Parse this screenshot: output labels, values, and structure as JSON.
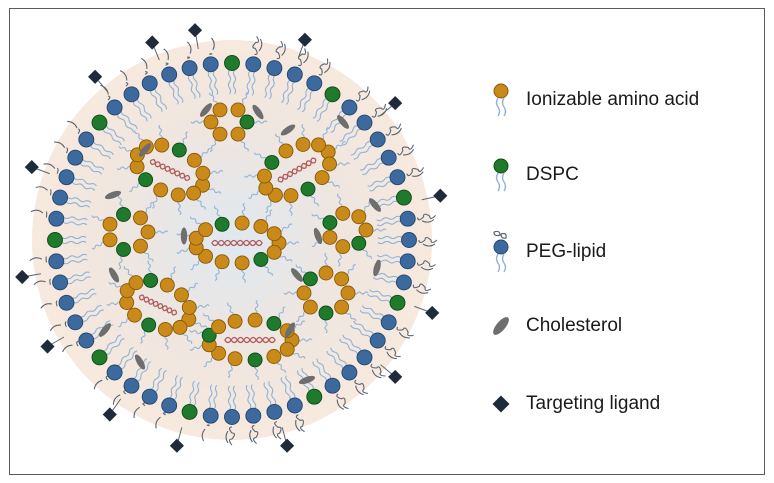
{
  "legend": [
    {
      "key": "ionizable",
      "label": "Ionizable amino acid",
      "icon": "orange-lipid-icon",
      "color": "#c98a1a"
    },
    {
      "key": "dspc",
      "label": "DSPC",
      "icon": "green-lipid-icon",
      "color": "#1f7a2c"
    },
    {
      "key": "peg",
      "label": "PEG-lipid",
      "icon": "blue-peg-lipid-icon",
      "color": "#3d6a9e"
    },
    {
      "key": "chol",
      "label": "Cholesterol",
      "icon": "gray-ellipse-icon",
      "color": "#6e6e6e"
    },
    {
      "key": "ligand",
      "label": "Targeting ligand",
      "icon": "navy-diamond-icon",
      "color": "#1f2a3a"
    }
  ],
  "colors": {
    "core_fill": "#f7e9dd",
    "core_center": "#dfe8f0",
    "tail": "#8fb3d9",
    "peg_coil": "#5b6573",
    "rna": "#b25a5a",
    "frame": "#5a5a5a"
  }
}
